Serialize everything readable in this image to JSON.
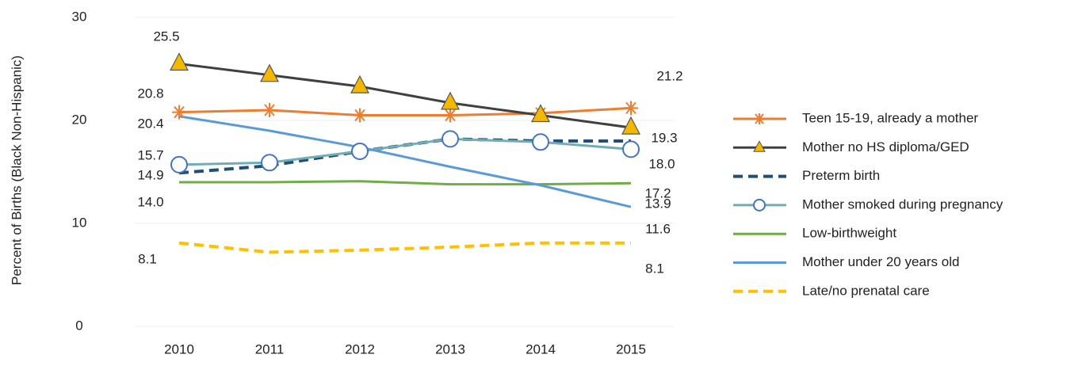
{
  "chart_data": {
    "type": "line",
    "y_label": "Percent of Births (Black Non-Hispanic)",
    "categories": [
      "2010",
      "2011",
      "2012",
      "2013",
      "2014",
      "2015"
    ],
    "ylim": [
      0,
      30
    ],
    "yticks": [
      0,
      10,
      20,
      30
    ],
    "grid": true,
    "series": [
      {
        "name": "Teen 15-19, already a mother",
        "color": "#ED7D31",
        "marker": "asterisk",
        "values": [
          20.8,
          21.0,
          20.5,
          20.5,
          20.7,
          21.2
        ],
        "value_labels": [
          "20.8",
          null,
          null,
          null,
          null,
          "21.2"
        ]
      },
      {
        "name": "Mother no HS diploma/GED",
        "color": "#404040",
        "marker": "triangle",
        "marker_color": "#F5B800",
        "values": [
          25.5,
          24.4,
          23.3,
          21.7,
          20.5,
          19.3
        ],
        "value_labels": [
          "25.5",
          null,
          null,
          null,
          null,
          "19.3"
        ]
      },
      {
        "name": "Preterm birth",
        "color": "#1F4E79",
        "dash": true,
        "values": [
          14.9,
          15.6,
          17.0,
          18.2,
          18.0,
          18.0
        ],
        "value_labels": [
          "14.9",
          null,
          null,
          null,
          null,
          "18.0"
        ]
      },
      {
        "name": "Mother smoked during pregnancy",
        "color": "#70ADB5",
        "marker": "circle",
        "marker_color": "#4472C4",
        "values": [
          15.7,
          15.9,
          17.0,
          18.2,
          17.9,
          17.2
        ],
        "value_labels": [
          "15.7",
          null,
          null,
          null,
          null,
          "17.2"
        ]
      },
      {
        "name": "Low-birthweight",
        "color": "#70AD47",
        "values": [
          14.0,
          14.0,
          14.1,
          13.8,
          13.8,
          13.9
        ],
        "value_labels": [
          "14.0",
          null,
          null,
          null,
          null,
          "13.9"
        ]
      },
      {
        "name": "Mother under 20 years old",
        "color": "#5B9BD5",
        "values": [
          20.4,
          19.0,
          17.4,
          15.5,
          13.7,
          11.6
        ],
        "value_labels": [
          "20.4",
          null,
          null,
          null,
          null,
          "11.6"
        ]
      },
      {
        "name": "Late/no prenatal care",
        "color": "#FFC000",
        "dash": true,
        "values": [
          8.1,
          7.2,
          7.4,
          7.7,
          8.1,
          8.1
        ],
        "value_labels": [
          "8.1",
          null,
          null,
          null,
          null,
          "8.1"
        ]
      }
    ]
  }
}
